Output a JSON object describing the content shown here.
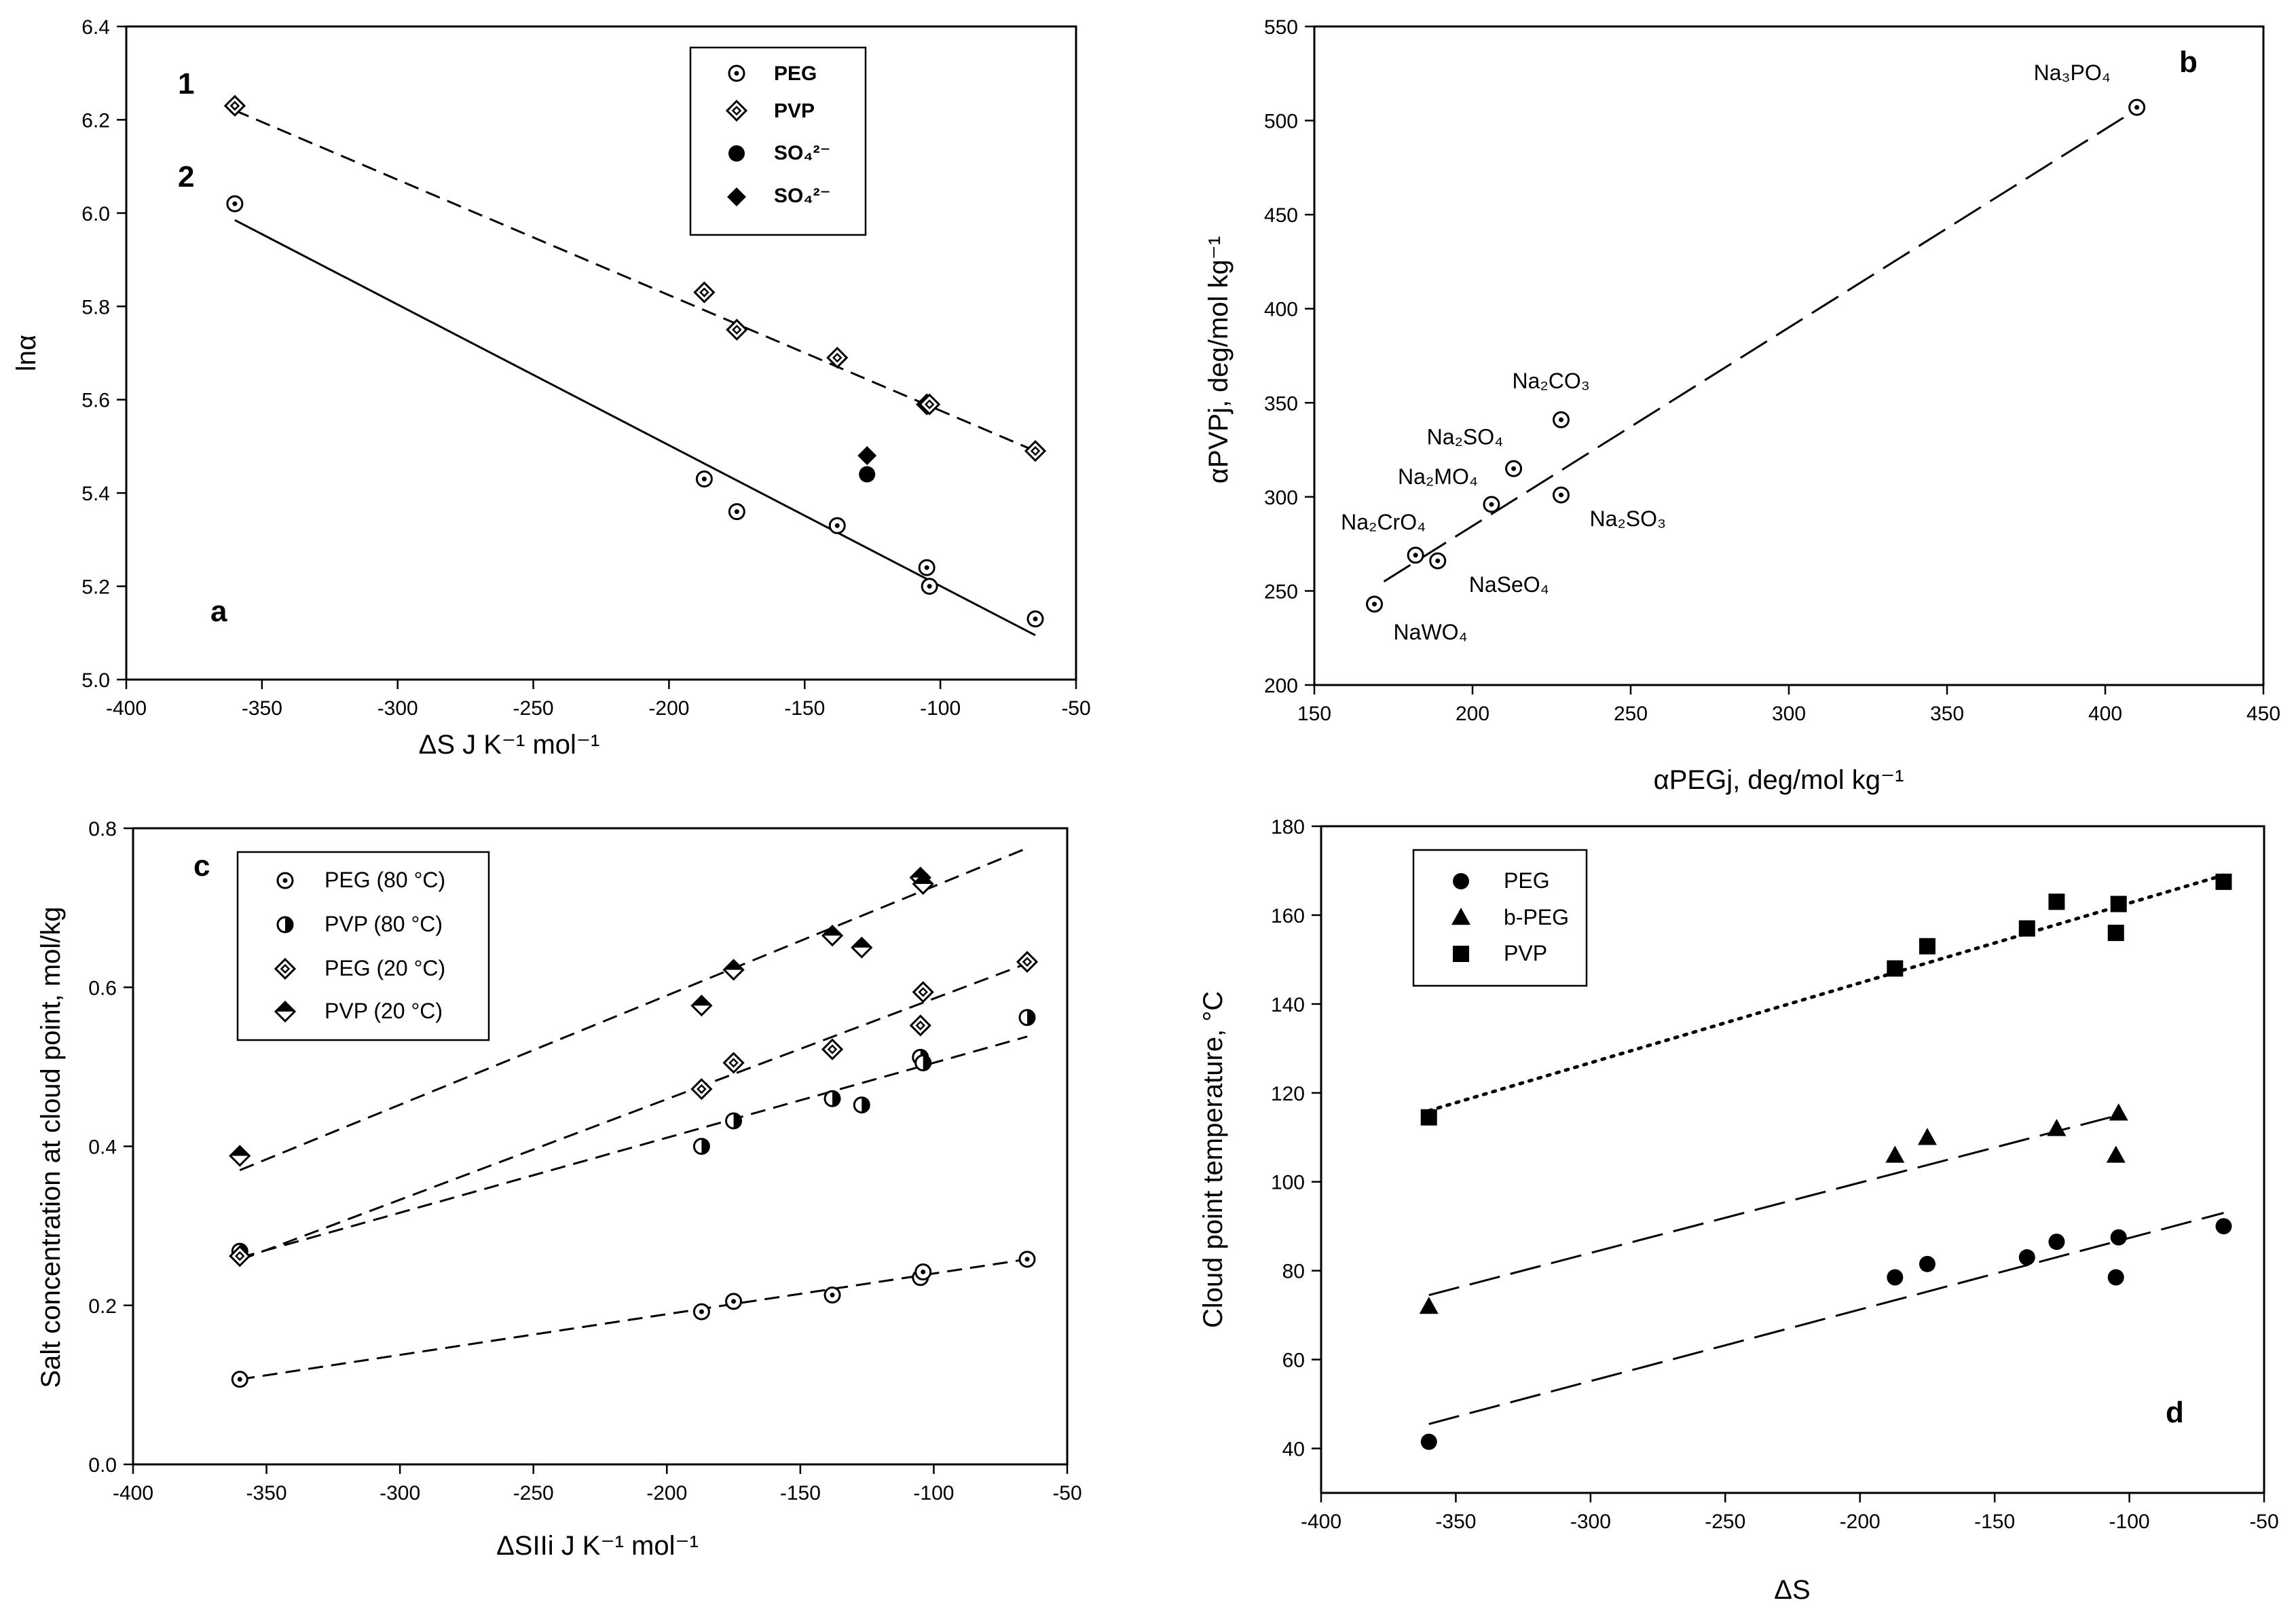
{
  "chart_data": [
    {
      "id": "a",
      "type": "scatter",
      "panel_label": "a",
      "xlabel": "ΔS  J K⁻¹ mol⁻¹",
      "ylabel": "lnα",
      "xlim": [
        -400,
        -50
      ],
      "ylim": [
        5.0,
        6.4
      ],
      "xticks": [
        "-400",
        "-350",
        "-300",
        "-250",
        "-200",
        "-150",
        "-100",
        "-50"
      ],
      "yticks": [
        "5.0",
        "5.2",
        "5.4",
        "5.6",
        "5.8",
        "6.0",
        "6.2",
        "6.4"
      ],
      "legend": [
        {
          "label": "PEG",
          "marker": "circle-dot"
        },
        {
          "label": "PVP",
          "marker": "diamond-dot"
        },
        {
          "label": "SO₄²⁻",
          "marker": "circle-filled"
        },
        {
          "label": "SO₄²⁻",
          "marker": "diamond-filled"
        }
      ],
      "line_labels": [
        "1",
        "2"
      ],
      "series": [
        {
          "name": "PEG",
          "marker": "circle-dot",
          "x": [
            -360,
            -187,
            -175,
            -138,
            -105,
            -104,
            -65
          ],
          "y": [
            6.02,
            5.43,
            5.36,
            5.33,
            5.24,
            5.2,
            5.13
          ]
        },
        {
          "name": "PVP",
          "marker": "diamond-dot",
          "x": [
            -360,
            -187,
            -175,
            -138,
            -105,
            -104,
            -65
          ],
          "y": [
            6.23,
            5.83,
            5.75,
            5.69,
            5.59,
            5.59,
            5.49
          ]
        },
        {
          "name": "SO₄²⁻ (PEG)",
          "marker": "circle-filled",
          "x": [
            -127
          ],
          "y": [
            5.44
          ]
        },
        {
          "name": "SO₄²⁻ (PVP)",
          "marker": "diamond-filled",
          "x": [
            -127
          ],
          "y": [
            5.48
          ]
        }
      ],
      "fits": [
        {
          "label": "1",
          "style": "dashed",
          "x": [
            -360,
            -65
          ],
          "y": [
            6.22,
            5.49
          ]
        },
        {
          "label": "2",
          "style": "solid",
          "x": [
            -360,
            -65
          ],
          "y": [
            5.985,
            5.095
          ]
        }
      ]
    },
    {
      "id": "b",
      "type": "scatter",
      "panel_label": "b",
      "xlabel": "αPEGj, deg/mol kg⁻¹",
      "ylabel": "αPVPj, deg/mol kg⁻¹",
      "xlim": [
        150,
        450
      ],
      "ylim": [
        200,
        550
      ],
      "xticks": [
        "150",
        "200",
        "250",
        "300",
        "350",
        "400",
        "450"
      ],
      "yticks": [
        "200",
        "250",
        "300",
        "350",
        "400",
        "450",
        "500",
        "550"
      ],
      "series": [
        {
          "name": "salts",
          "marker": "circle-dot",
          "x": [
            410,
            228,
            213,
            228,
            206,
            182,
            189,
            169
          ],
          "y": [
            507,
            341,
            315,
            301,
            296,
            269,
            266,
            243
          ],
          "labels": [
            "Na₃PO₄",
            "Na₂CO₃",
            "Na₂SO₄",
            "Na₂SO₃",
            "Na₂MO₄",
            "Na₂CrO₄",
            "NaSeO₄",
            "NaWO₄"
          ]
        }
      ],
      "fits": [
        {
          "style": "long-dash",
          "x": [
            172,
            410
          ],
          "y": [
            255,
            506
          ]
        }
      ]
    },
    {
      "id": "c",
      "type": "scatter",
      "panel_label": "c",
      "xlabel": "ΔSIIi J K⁻¹ mol⁻¹",
      "ylabel": "Salt concentration at cloud point, mol/kg",
      "xlim": [
        -400,
        -50
      ],
      "ylim": [
        0.0,
        0.8
      ],
      "xticks": [
        "-400",
        "-350",
        "-300",
        "-250",
        "-200",
        "-150",
        "-100",
        "-50"
      ],
      "yticks": [
        "0.0",
        "0.2",
        "0.4",
        "0.6",
        "0.8"
      ],
      "legend": [
        {
          "label": "PEG (80 °C)",
          "marker": "circle-dot"
        },
        {
          "label": "PVP (80 °C)",
          "marker": "circle-half"
        },
        {
          "label": "PEG (20 °C)",
          "marker": "diamond-dot"
        },
        {
          "label": "PVP (20 °C)",
          "marker": "diamond-half"
        }
      ],
      "series": [
        {
          "name": "PEG (80 °C)",
          "marker": "circle-dot",
          "x": [
            -360,
            -187,
            -175,
            -138,
            -105,
            -104,
            -65
          ],
          "y": [
            0.107,
            0.192,
            0.205,
            0.213,
            0.235,
            0.242,
            0.258
          ]
        },
        {
          "name": "PVP (80 °C)",
          "marker": "circle-half",
          "x": [
            -360,
            -187,
            -175,
            -138,
            -127,
            -105,
            -104,
            -65
          ],
          "y": [
            0.268,
            0.4,
            0.432,
            0.46,
            0.452,
            0.512,
            0.505,
            0.562
          ]
        },
        {
          "name": "PEG (20 °C)",
          "marker": "diamond-dot",
          "x": [
            -360,
            -187,
            -175,
            -138,
            -105,
            -104,
            -65
          ],
          "y": [
            0.262,
            0.472,
            0.505,
            0.522,
            0.552,
            0.594,
            0.632
          ]
        },
        {
          "name": "PVP (20 °C)",
          "marker": "diamond-half",
          "x": [
            -360,
            -187,
            -175,
            -138,
            -127,
            -105,
            -104
          ],
          "y": [
            0.388,
            0.577,
            0.622,
            0.665,
            0.65,
            0.738,
            0.73
          ]
        }
      ],
      "fits": [
        {
          "style": "dashed",
          "x": [
            -360,
            -65
          ],
          "y": [
            0.107,
            0.258
          ]
        },
        {
          "style": "dashed",
          "x": [
            -360,
            -65
          ],
          "y": [
            0.26,
            0.538
          ]
        },
        {
          "style": "dashed",
          "x": [
            -360,
            -65
          ],
          "y": [
            0.257,
            0.63
          ]
        },
        {
          "style": "dashed",
          "x": [
            -360,
            -65
          ],
          "y": [
            0.37,
            0.775
          ]
        }
      ]
    },
    {
      "id": "d",
      "type": "scatter",
      "panel_label": "d",
      "xlabel": "ΔS",
      "ylabel": "Cloud point temperature, °C",
      "xlim": [
        -400,
        -50
      ],
      "ylim": [
        30,
        180
      ],
      "xticks": [
        "-400",
        "-350",
        "-300",
        "-250",
        "-200",
        "-150",
        "-100",
        "-50"
      ],
      "yticks": [
        "40",
        "60",
        "80",
        "100",
        "120",
        "140",
        "160",
        "180"
      ],
      "legend": [
        {
          "label": "PEG",
          "marker": "circle-filled"
        },
        {
          "label": "b-PEG",
          "marker": "triangle-filled"
        },
        {
          "label": "PVP",
          "marker": "square-filled"
        }
      ],
      "series": [
        {
          "name": "PEG",
          "marker": "circle-filled",
          "x": [
            -360,
            -187,
            -175,
            -138,
            -127,
            -105,
            -104,
            -65
          ],
          "y": [
            41.5,
            78.5,
            81.5,
            83,
            86.5,
            78.5,
            87.5,
            90
          ]
        },
        {
          "name": "b-PEG",
          "marker": "triangle-filled",
          "x": [
            -360,
            -187,
            -175,
            -127,
            -105,
            -104
          ],
          "y": [
            72,
            106,
            110,
            112,
            106,
            115.5
          ]
        },
        {
          "name": "PVP",
          "marker": "square-filled",
          "x": [
            -360,
            -187,
            -175,
            -138,
            -127,
            -105,
            -104,
            -65
          ],
          "y": [
            114.5,
            148,
            153,
            157,
            163,
            156,
            162.5,
            167.5
          ]
        }
      ],
      "fits": [
        {
          "style": "long-dash",
          "x": [
            -360,
            -65
          ],
          "y": [
            45.5,
            93
          ]
        },
        {
          "style": "long-dash",
          "x": [
            -360,
            -104
          ],
          "y": [
            74.5,
            115
          ]
        },
        {
          "style": "dotted",
          "x": [
            -360,
            -65
          ],
          "y": [
            116,
            169
          ]
        }
      ]
    }
  ]
}
